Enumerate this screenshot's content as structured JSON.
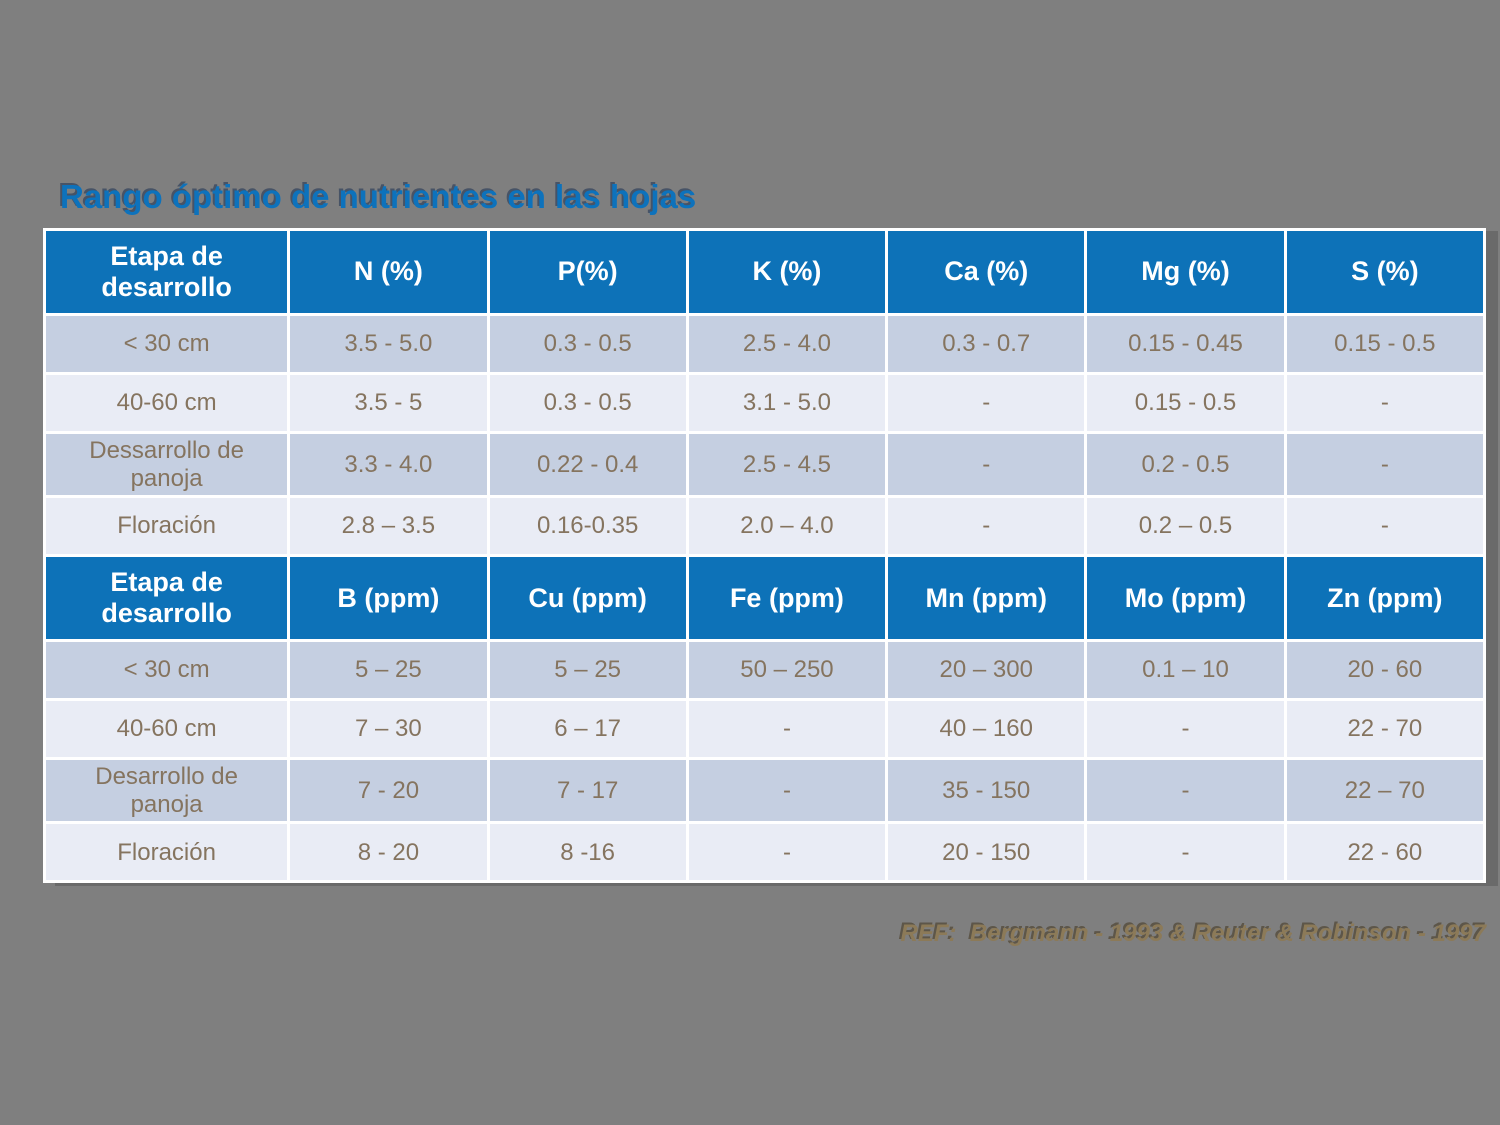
{
  "slide": {
    "title": "Rango óptimo de nutrientes en las hojas",
    "reference": "REF:  Bergmann - 1993 & Reuter & Robinson - 1997"
  },
  "colors": {
    "background": "#7f7f7f",
    "header_bg": "#0d72b8",
    "header_text": "#ffffff",
    "row_dark": "#c5cfe1",
    "row_light": "#e9ecf5",
    "data_text": "#85745f",
    "title_blue": "#0d72bc",
    "reference_brown": "#8c7a58",
    "gridline": "#ffffff"
  },
  "tables": [
    {
      "headers": [
        "Etapa de desarrollo",
        "N (%)",
        "P(%)",
        "K (%)",
        "Ca (%)",
        "Mg (%)",
        "S (%)"
      ],
      "rows": [
        [
          "< 30 cm",
          "3.5 - 5.0",
          "0.3 - 0.5",
          "2.5 - 4.0",
          "0.3 - 0.7",
          "0.15 - 0.45",
          "0.15 - 0.5"
        ],
        [
          "40-60 cm",
          "3.5 - 5",
          "0.3 - 0.5",
          "3.1 - 5.0",
          "-",
          "0.15 - 0.5",
          "-"
        ],
        [
          "Dessarrollo de panoja",
          "3.3 - 4.0",
          "0.22 - 0.4",
          "2.5 - 4.5",
          "-",
          "0.2 - 0.5",
          "-"
        ],
        [
          "Floración",
          "2.8 – 3.5",
          "0.16-0.35",
          "2.0 – 4.0",
          "-",
          "0.2 – 0.5",
          "-"
        ]
      ]
    },
    {
      "headers": [
        "Etapa de desarrollo",
        "B (ppm)",
        "Cu (ppm)",
        "Fe (ppm)",
        "Mn (ppm)",
        "Mo (ppm)",
        "Zn (ppm)"
      ],
      "rows": [
        [
          "< 30 cm",
          "5 – 25",
          "5 – 25",
          "50 – 250",
          "20 – 300",
          "0.1 – 10",
          "20 - 60"
        ],
        [
          "40-60 cm",
          "7 – 30",
          "6 – 17",
          "-",
          "40 – 160",
          "-",
          "22 - 70"
        ],
        [
          "Desarrollo de panoja",
          "7 - 20",
          "7 - 17",
          "-",
          "35 - 150",
          "-",
          "22 – 70"
        ],
        [
          "Floración",
          "8 - 20",
          "8 -16",
          "-",
          "20 - 150",
          "-",
          "22 - 60"
        ]
      ]
    }
  ]
}
